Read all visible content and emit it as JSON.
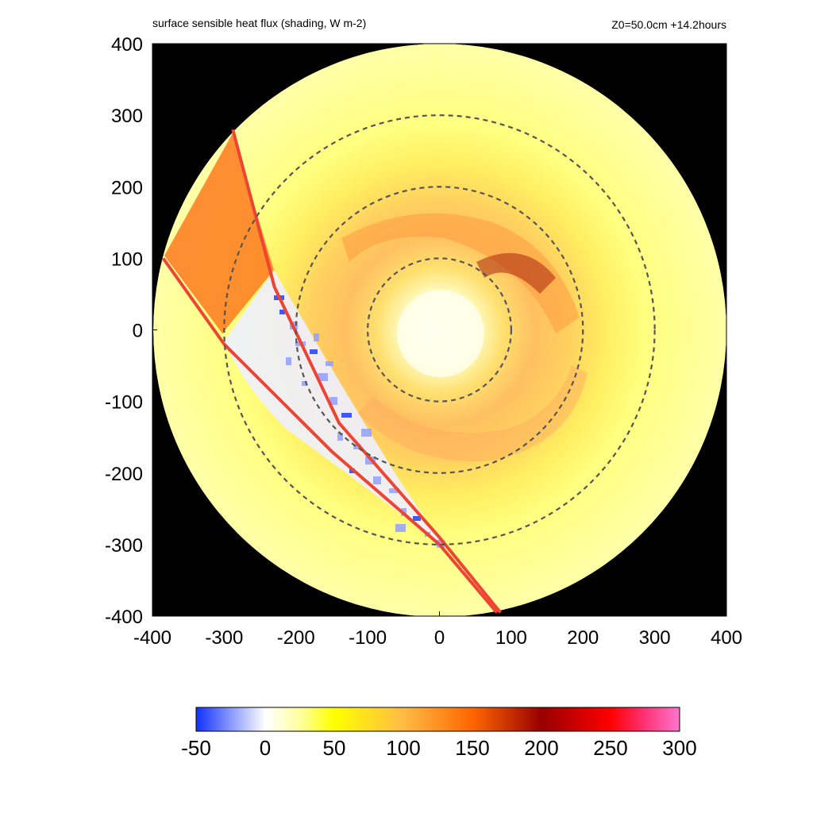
{
  "header": {
    "title": "surface sensible heat flux (shading, W m-2)",
    "info": "Z0=50.0cm  +14.2hours"
  },
  "colors": {
    "outside_domain": "#000000",
    "frame": "#000000",
    "ring": "#555555",
    "band_outline": "#ee4433"
  },
  "chart_data": {
    "type": "heatmap",
    "title": "surface sensible heat flux (shading, W m-2)",
    "xlabel": "",
    "ylabel": "",
    "xlim": [
      -400,
      400
    ],
    "ylim": [
      -400,
      400
    ],
    "x_ticks": [
      -400,
      -300,
      -200,
      -100,
      0,
      100,
      200,
      300,
      400
    ],
    "y_ticks": [
      -400,
      -300,
      -200,
      -100,
      0,
      100,
      200,
      300,
      400
    ],
    "x_tick_labels": [
      "-400",
      "-300",
      "-200",
      "-100",
      "0",
      "100",
      "200",
      "300",
      "400"
    ],
    "y_tick_labels": [
      "-400",
      "-300",
      "-200",
      "-100",
      "0",
      "100",
      "200",
      "300",
      "400"
    ],
    "domain_radius": 400,
    "dashed_ring_radii": [
      100,
      200,
      300
    ],
    "highlight_band": {
      "outer_edge": [
        [
          -288,
          280
        ],
        [
          -230,
          60
        ],
        [
          -140,
          -130
        ],
        [
          0,
          -290
        ],
        [
          85,
          -395
        ]
      ],
      "inner_edge": [
        [
          -385,
          100
        ],
        [
          -300,
          -20
        ],
        [
          -150,
          -170
        ],
        [
          0,
          -300
        ],
        [
          80,
          -395
        ]
      ]
    },
    "colorbar": {
      "min": -50,
      "max": 300,
      "tick_values": [
        -50,
        0,
        50,
        100,
        150,
        200,
        250,
        300
      ],
      "tick_labels": [
        "-50",
        "0",
        "50",
        "100",
        "150",
        "200",
        "250",
        "300"
      ],
      "stops": [
        {
          "value": -50,
          "color": "#1030ff"
        },
        {
          "value": -25,
          "color": "#8898ff"
        },
        {
          "value": 0,
          "color": "#ffffff"
        },
        {
          "value": 25,
          "color": "#ffffa0"
        },
        {
          "value": 50,
          "color": "#ffff00"
        },
        {
          "value": 100,
          "color": "#ffbb44"
        },
        {
          "value": 150,
          "color": "#ff6600"
        },
        {
          "value": 200,
          "color": "#990000"
        },
        {
          "value": 250,
          "color": "#ff0000"
        },
        {
          "value": 275,
          "color": "#ff3377"
        },
        {
          "value": 300,
          "color": "#ff77cc"
        }
      ]
    }
  }
}
